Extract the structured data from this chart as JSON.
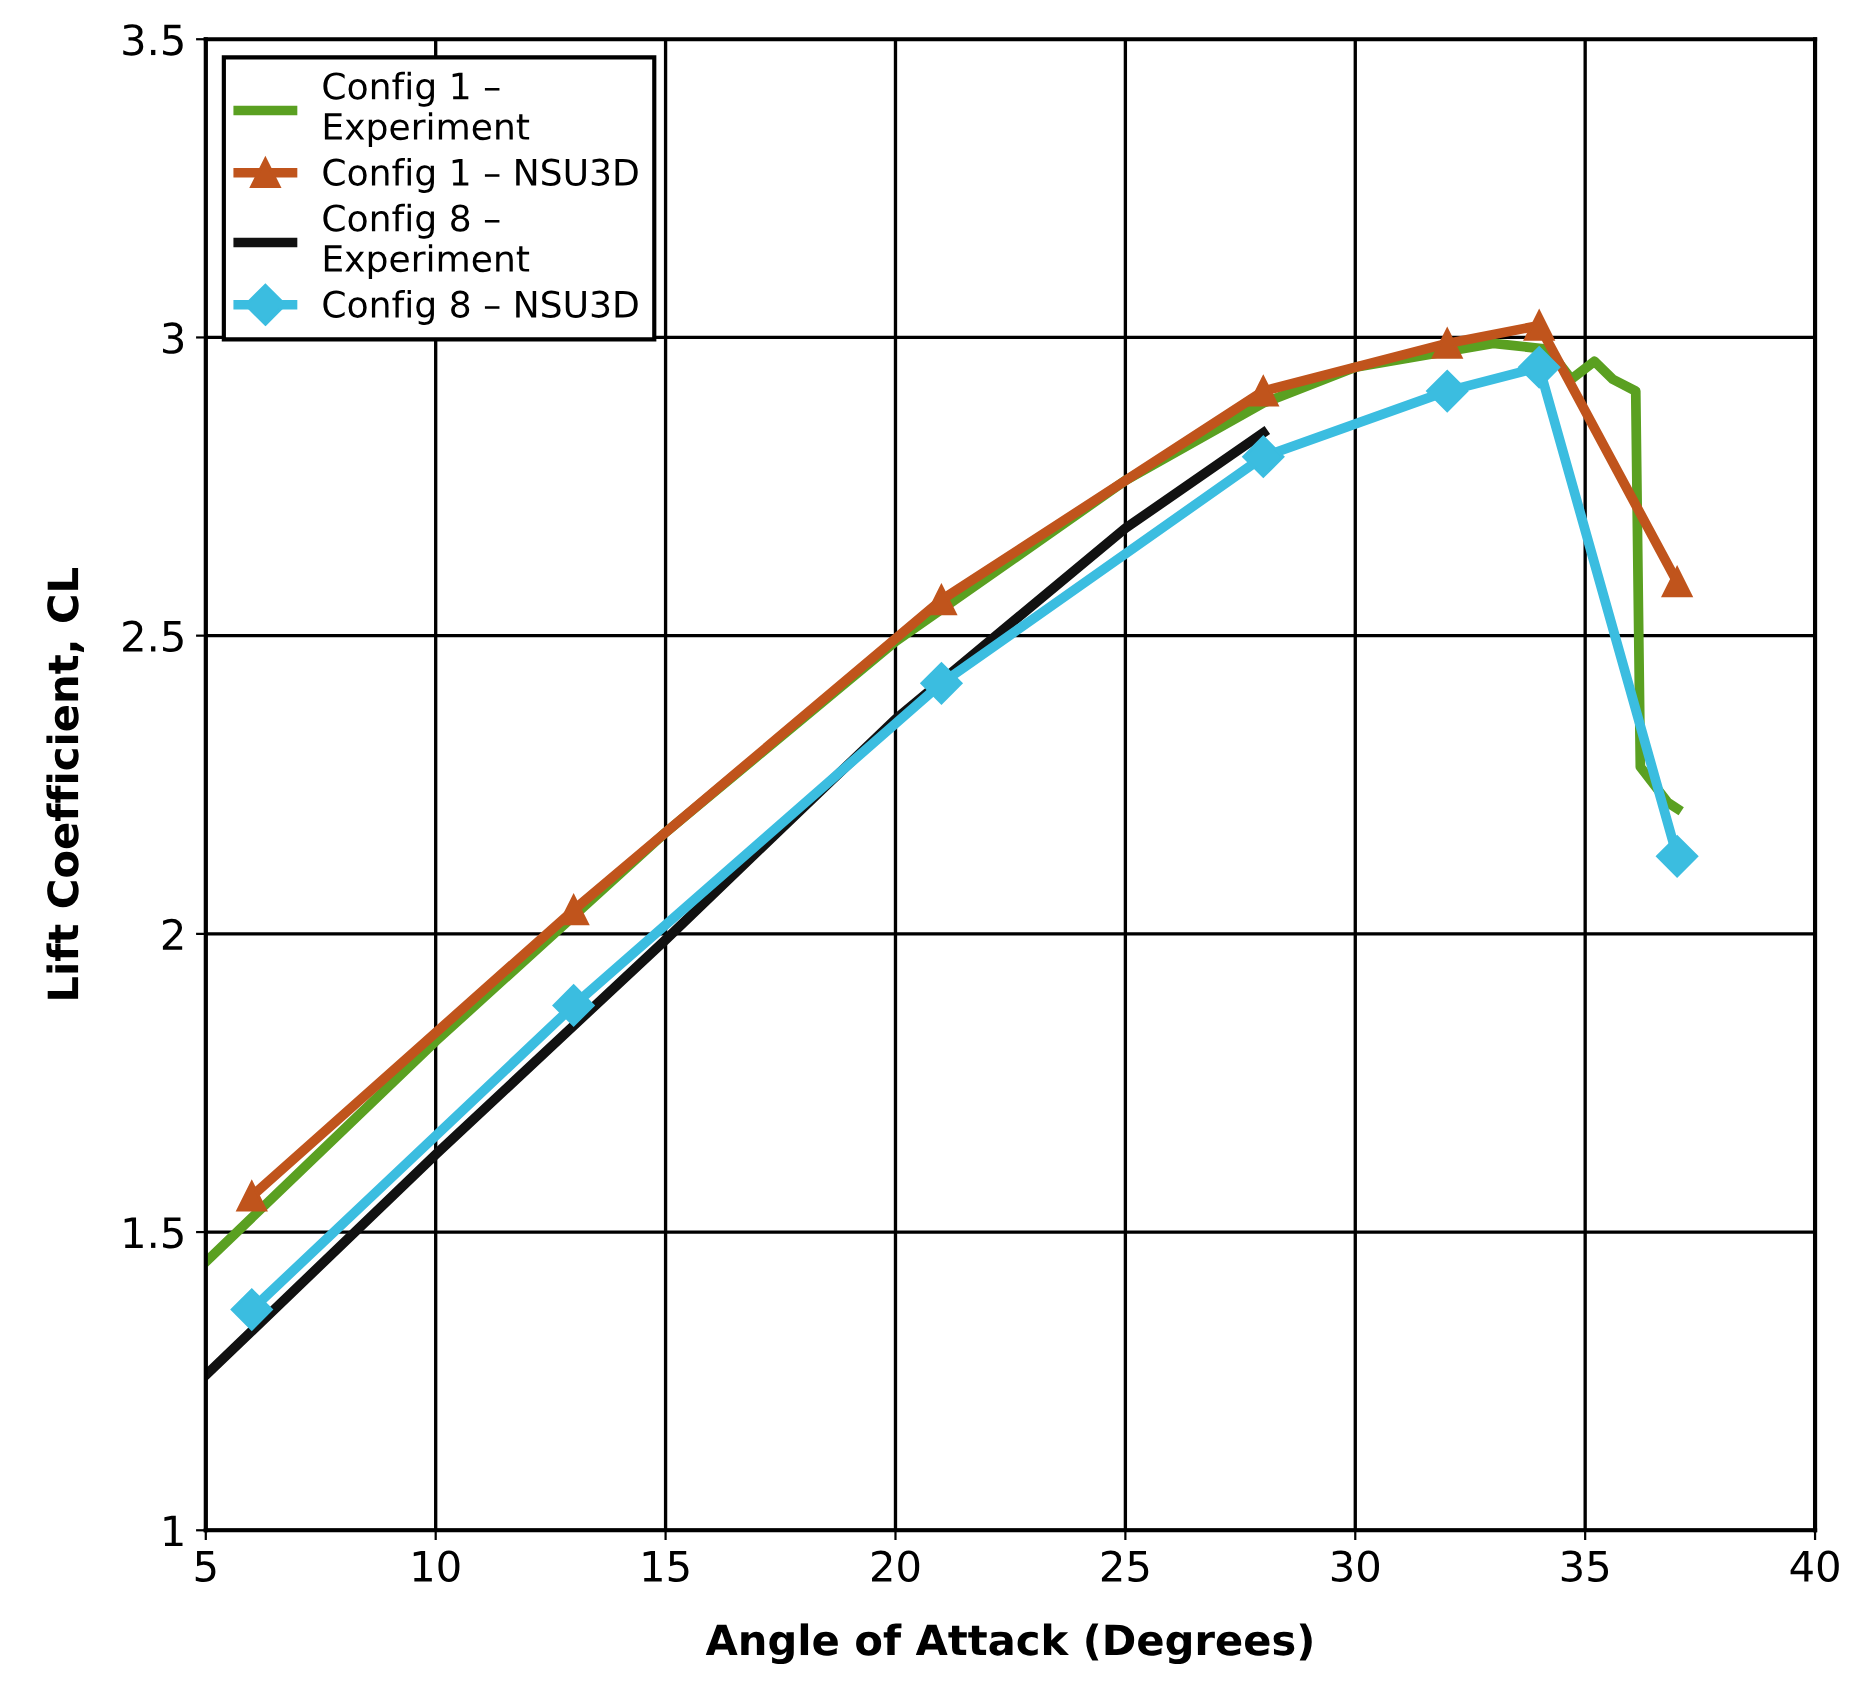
{
  "chart_data": {
    "type": "line",
    "xlabel": "Angle of Attack (Degrees)",
    "ylabel": "Lift Coefficient, CL",
    "xlim": [
      5,
      40
    ],
    "xticks": [
      5,
      10,
      15,
      20,
      25,
      30,
      35,
      40
    ],
    "ylim": [
      1,
      3.5
    ],
    "yticks": [
      1,
      1.5,
      2,
      2.5,
      3,
      3.5
    ],
    "grid": true,
    "legend": "top left",
    "series": [
      {
        "name": "Config 1 –\nExperiment",
        "color": "#5aa021",
        "marker": "none",
        "x": [
          5,
          10,
          15,
          20,
          25,
          28,
          30,
          33,
          34.2,
          34.7,
          35.2,
          35.6,
          36.1,
          36.2,
          36.8,
          37
        ],
        "values": [
          1.45,
          1.82,
          2.17,
          2.49,
          2.76,
          2.89,
          2.95,
          2.99,
          2.98,
          2.93,
          2.96,
          2.93,
          2.91,
          2.28,
          2.22,
          2.21
        ]
      },
      {
        "name": "Config 1 – NSU3D",
        "color": "#c0541c",
        "marker": "triangle",
        "x": [
          6,
          13,
          21,
          28,
          32,
          34,
          37
        ],
        "values": [
          1.56,
          2.04,
          2.56,
          2.91,
          2.99,
          3.02,
          2.59
        ]
      },
      {
        "name": "Config 8 –\nExperiment",
        "color": "#111111",
        "marker": "none",
        "x": [
          5,
          10,
          15,
          20,
          25,
          28
        ],
        "values": [
          1.26,
          1.63,
          1.99,
          2.36,
          2.68,
          2.84
        ]
      },
      {
        "name": "Config 8 – NSU3D",
        "color": "#3bbde0",
        "marker": "diamond",
        "x": [
          6,
          13,
          21,
          28,
          32,
          34,
          37
        ],
        "values": [
          1.37,
          1.88,
          2.42,
          2.8,
          2.91,
          2.95,
          2.13
        ]
      }
    ]
  }
}
